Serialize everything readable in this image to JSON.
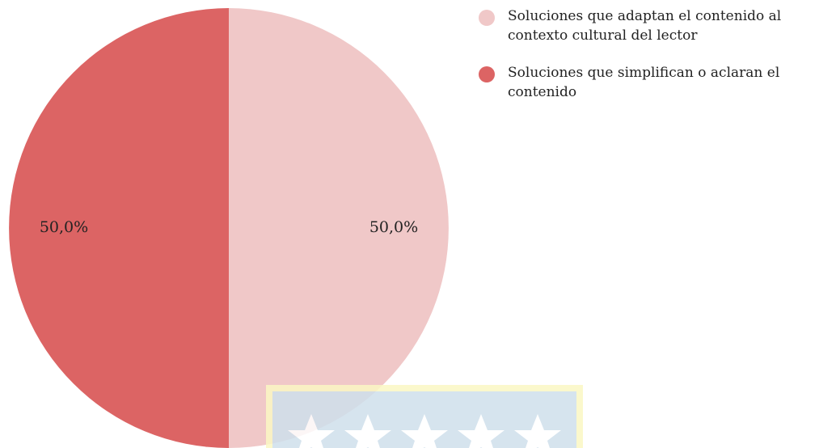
{
  "chart_data": {
    "type": "pie",
    "categories": [
      "Soluciones que adaptan el contenido al contexto cultural del lector",
      "Soluciones que simplifican o aclaran el contenido"
    ],
    "values": [
      50,
      50
    ],
    "value_labels": [
      "50,0%",
      "50,0%"
    ],
    "colors": [
      "#f0c8c8",
      "#dc6464"
    ]
  }
}
